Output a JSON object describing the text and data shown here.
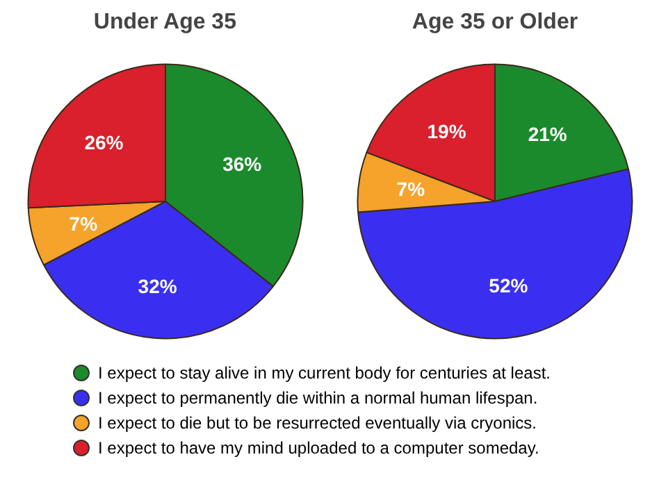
{
  "chart_data": [
    {
      "type": "pie",
      "title": "Under Age 35",
      "categories": [
        "I expect to stay alive in my current body for centuries at least.",
        "I expect to permanently die within a normal human lifespan.",
        "I expect to die but to be resurrected eventually via cryonics.",
        "I expect to have my mind uploaded to a computer someday."
      ],
      "values": [
        36,
        32,
        7,
        26
      ],
      "colors": [
        "#1b8a2c",
        "#3a2ff0",
        "#f5a32a",
        "#d9202c"
      ],
      "value_labels": [
        "36%",
        "32%",
        "7%",
        "26%"
      ],
      "legend": "bottom"
    },
    {
      "type": "pie",
      "title": "Age 35 or Older",
      "categories": [
        null,
        null,
        null,
        null
      ],
      "values": [
        21,
        52,
        7,
        19
      ],
      "colors": [
        "#1b8a2c",
        "#3a2ff0",
        "#f5a32a",
        "#d9202c"
      ],
      "value_labels": [
        "21%",
        "52%",
        "7%",
        "19%"
      ]
    }
  ]
}
